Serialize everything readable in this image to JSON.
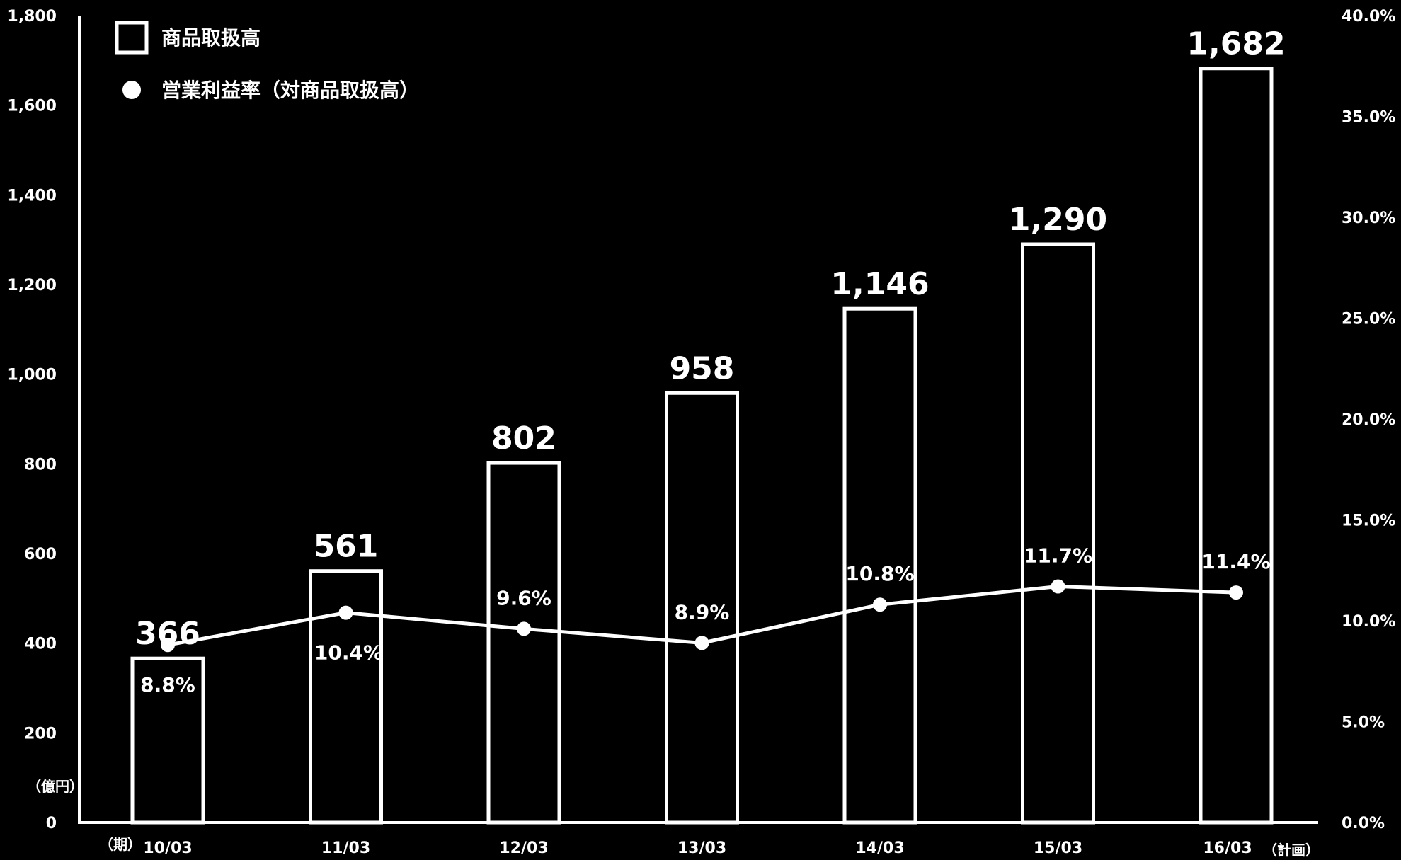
{
  "chart_data": {
    "type": "bar",
    "categories": [
      "10/03",
      "11/03",
      "12/03",
      "13/03",
      "14/03",
      "15/03",
      "16/03"
    ],
    "category_suffix": [
      "",
      "",
      "",
      "",
      "",
      "",
      "（計画）"
    ],
    "series": [
      {
        "name": "商品取扱高",
        "type": "bar",
        "axis": "left",
        "values": [
          366,
          561,
          802,
          958,
          1146,
          1290,
          1682
        ],
        "labels": [
          "366",
          "561",
          "802",
          "958",
          "1,146",
          "1,290",
          "1,682"
        ]
      },
      {
        "name": "営業利益率（対商品取扱高）",
        "type": "line",
        "axis": "right",
        "values": [
          8.8,
          10.4,
          9.6,
          8.9,
          10.8,
          11.7,
          11.4
        ],
        "labels": [
          "8.8%",
          "10.4%",
          "9.6%",
          "8.9%",
          "10.8%",
          "11.7%",
          "11.4%"
        ]
      }
    ],
    "y_left": {
      "range": [
        0,
        1800
      ],
      "ticks": [
        0,
        200,
        400,
        600,
        800,
        1000,
        1200,
        1400,
        1600,
        1800
      ],
      "tick_labels": [
        "0",
        "200",
        "400",
        "600",
        "800",
        "1,000",
        "1,200",
        "1,400",
        "1,600",
        "1,800"
      ],
      "unit": "（億円）"
    },
    "y_right": {
      "range": [
        0,
        40
      ],
      "ticks": [
        0,
        5,
        10,
        15,
        20,
        25,
        30,
        35,
        40
      ],
      "tick_labels": [
        "0.0%",
        "5.0%",
        "10.0%",
        "15.0%",
        "20.0%",
        "25.0%",
        "30.0%",
        "35.0%",
        "40.0%"
      ]
    },
    "x_axis_unit": "（期）",
    "legend_position": "top-left",
    "grid": false,
    "colors": {
      "background": "#000000",
      "foreground": "#ffffff"
    }
  }
}
